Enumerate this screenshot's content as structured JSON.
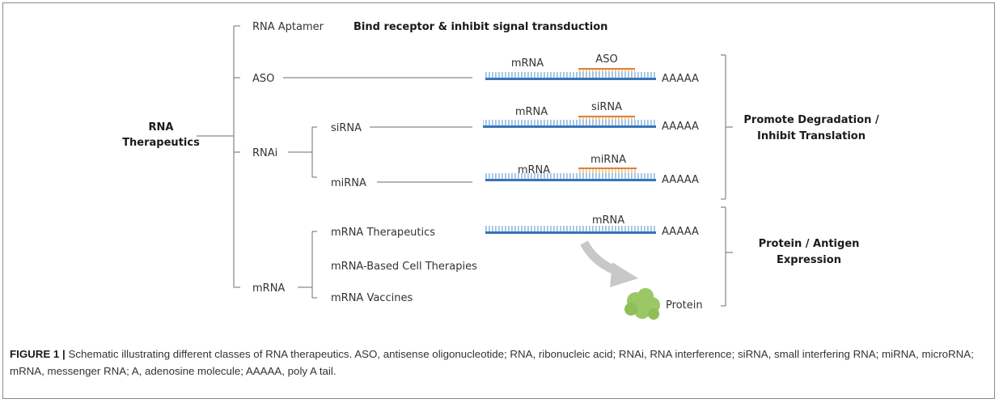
{
  "diagram": {
    "root": [
      "RNA",
      "Therapeutics"
    ],
    "branches": {
      "aptamer": "RNA Aptamer",
      "aptamer_desc": "Bind receptor & inhibit signal transduction",
      "aso": "ASO",
      "rnai": "RNAi",
      "sirna": "siRNA",
      "mirna": "miRNA",
      "mrna": "mRNA",
      "mrna_therapeutics": "mRNA Therapeutics",
      "mrna_cell": "mRNA-Based Cell Therapies",
      "mrna_vaccines": "mRNA Vaccines"
    },
    "strands": [
      {
        "label": "mRNA",
        "binder": "ASO",
        "tail": "AAAAA"
      },
      {
        "label": "mRNA",
        "binder": "siRNA",
        "tail": "AAAAA"
      },
      {
        "label": "mRNA",
        "binder": "miRNA",
        "tail": "AAAAA"
      },
      {
        "label": "mRNA",
        "binder": "",
        "tail": "AAAAA"
      }
    ],
    "protein": "Protein",
    "effects": {
      "degradation": [
        "Promote Degradation /",
        "Inhibit Translation"
      ],
      "expression": [
        "Protein / Antigen",
        "Expression"
      ]
    },
    "colors": {
      "strand": "#3a73b5",
      "teeth": "#9ec3e6",
      "binder": "#d9833a",
      "binder_teeth": "#f2c79a",
      "protein": "#9bc765"
    }
  },
  "caption": {
    "figure": "FIGURE 1 |",
    "text": "Schematic illustrating different classes of RNA therapeutics. ASO, antisense oligonucleotide; RNA, ribonucleic acid; RNAi, RNA interference; siRNA, small interfering RNA; miRNA, microRNA; mRNA, messenger RNA; A, adenosine molecule; AAAAA, poly A tail."
  }
}
